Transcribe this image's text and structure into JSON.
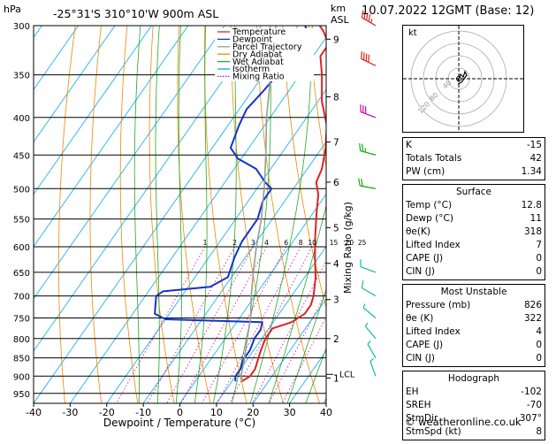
{
  "header": {
    "location": "-25°31'S  310°10'W  900m  ASL",
    "datetime": "10.07.2022  12GMT  (Base: 12)",
    "hpa_label": "hPa",
    "km_label": "km",
    "asl_label": "ASL"
  },
  "chart_data": {
    "type": "line",
    "xlabel": "Dewpoint / Temperature (°C)",
    "ylabel_right": "Mixing Ratio (g/kg)",
    "ylabel_left": "hPa",
    "xlim": [
      -40,
      40
    ],
    "ylim": [
      980,
      300
    ],
    "y_log_scale": true,
    "x_ticks": [
      -40,
      -30,
      -20,
      -10,
      0,
      10,
      20,
      30,
      40
    ],
    "pressure_ticks": [
      300,
      350,
      400,
      450,
      500,
      550,
      600,
      650,
      700,
      750,
      800,
      850,
      900,
      950
    ],
    "km_ticks": [
      {
        "label": "9",
        "p": 313
      },
      {
        "label": "8",
        "p": 375
      },
      {
        "label": "7",
        "p": 432
      },
      {
        "label": "6",
        "p": 490
      },
      {
        "label": "5",
        "p": 565
      },
      {
        "label": "4",
        "p": 632
      },
      {
        "label": "3",
        "p": 708
      },
      {
        "label": "2",
        "p": 800
      },
      {
        "label": "1",
        "p": 905
      }
    ],
    "lcl": {
      "label": "LCL",
      "p": 895
    },
    "mixing_ratios": [
      {
        "label": "1",
        "w": 1
      },
      {
        "label": "2",
        "w": 2
      },
      {
        "label": "3",
        "w": 3
      },
      {
        "label": "4",
        "w": 4
      },
      {
        "label": "6",
        "w": 6
      },
      {
        "label": "8",
        "w": 8
      },
      {
        "label": "10",
        "w": 10
      },
      {
        "label": "15",
        "w": 15
      },
      {
        "label": "20",
        "w": 20
      },
      {
        "label": "25",
        "w": 25
      }
    ],
    "legend": [
      {
        "name": "Temperature",
        "color": "#dd2222",
        "style": "solid"
      },
      {
        "name": "Dewpoint",
        "color": "#1133cc",
        "style": "solid"
      },
      {
        "name": "Parcel Trajectory",
        "color": "#999999",
        "style": "solid"
      },
      {
        "name": "Dry Adiabat",
        "color": "#ee8800",
        "style": "solid"
      },
      {
        "name": "Wet Adiabat",
        "color": "#22aa22",
        "style": "solid"
      },
      {
        "name": "Isotherm",
        "color": "#00aaee",
        "style": "solid"
      },
      {
        "name": "Mixing Ratio",
        "color": "#cc00aa",
        "style": "dotted"
      }
    ],
    "series": [
      {
        "name": "Temperature",
        "color": "#dd2222",
        "points": [
          [
            12.8,
            915
          ],
          [
            14,
            900
          ],
          [
            14,
            880
          ],
          [
            12,
            830
          ],
          [
            11,
            800
          ],
          [
            11,
            775
          ],
          [
            15,
            760
          ],
          [
            17,
            740
          ],
          [
            17,
            720
          ],
          [
            16,
            700
          ],
          [
            13,
            660
          ],
          [
            9,
            620
          ],
          [
            5,
            580
          ],
          [
            1,
            540
          ],
          [
            -2,
            510
          ],
          [
            -5,
            490
          ],
          [
            -6,
            470
          ],
          [
            -9,
            440
          ],
          [
            -13,
            410
          ],
          [
            -19,
            380
          ],
          [
            -24,
            350
          ],
          [
            -28,
            330
          ],
          [
            -28,
            318
          ],
          [
            -32,
            305
          ],
          [
            -34,
            300
          ]
        ]
      },
      {
        "name": "Dewpoint",
        "color": "#1133cc",
        "points": [
          [
            11,
            915
          ],
          [
            10,
            900
          ],
          [
            10,
            880
          ],
          [
            9,
            855
          ],
          [
            9,
            830
          ],
          [
            8,
            800
          ],
          [
            8,
            778
          ],
          [
            7,
            760
          ],
          [
            -20,
            753
          ],
          [
            -24,
            740
          ],
          [
            -27,
            700
          ],
          [
            -26,
            690
          ],
          [
            -14,
            680
          ],
          [
            -11,
            660
          ],
          [
            -13,
            620
          ],
          [
            -14,
            590
          ],
          [
            -14,
            550
          ],
          [
            -16,
            520
          ],
          [
            -16,
            500
          ],
          [
            -19,
            490
          ],
          [
            -24,
            470
          ],
          [
            -31,
            455
          ],
          [
            -35,
            440
          ],
          [
            -37,
            410
          ],
          [
            -38,
            390
          ],
          [
            -37,
            370
          ],
          [
            -36,
            345
          ],
          [
            -34,
            323
          ],
          [
            -34,
            317
          ],
          [
            -35,
            310
          ],
          [
            -38,
            300
          ]
        ]
      },
      {
        "name": "Parcel Trajectory",
        "color": "#999999",
        "points": [
          [
            12.8,
            915
          ],
          [
            11.5,
            900
          ],
          [
            9,
            850
          ],
          [
            6,
            800
          ],
          [
            3,
            750
          ],
          [
            -1,
            700
          ],
          [
            -5,
            650
          ],
          [
            -9,
            600
          ],
          [
            -13,
            550
          ],
          [
            -18,
            500
          ],
          [
            -24,
            450
          ],
          [
            -31,
            400
          ],
          [
            -38,
            350
          ],
          [
            -46,
            300
          ]
        ]
      }
    ],
    "wind_barbs": [
      {
        "p": 300,
        "speed": 45,
        "dir": 300
      },
      {
        "p": 340,
        "speed": 40,
        "dir": 295
      },
      {
        "p": 400,
        "speed": 30,
        "dir": 290
      },
      {
        "p": 450,
        "speed": 25,
        "dir": 285
      },
      {
        "p": 500,
        "speed": 20,
        "dir": 280
      },
      {
        "p": 650,
        "speed": 10,
        "dir": 290
      },
      {
        "p": 700,
        "speed": 10,
        "dir": 300
      },
      {
        "p": 750,
        "speed": 5,
        "dir": 310
      },
      {
        "p": 800,
        "speed": 5,
        "dir": 320
      },
      {
        "p": 850,
        "speed": 5,
        "dir": 330
      },
      {
        "p": 900,
        "speed": 5,
        "dir": 340
      }
    ]
  },
  "hodograph": {
    "label": "kt",
    "ring_labels": [
      "40",
      "80",
      "120"
    ]
  },
  "indices": {
    "rows": [
      {
        "label": "K",
        "value": "-15"
      },
      {
        "label": "Totals Totals",
        "value": "42"
      },
      {
        "label": "PW (cm)",
        "value": "1.34"
      }
    ]
  },
  "surface": {
    "title": "Surface",
    "rows": [
      {
        "label": "Temp (°C)",
        "value": "12.8"
      },
      {
        "label": "Dewp (°C)",
        "value": "11"
      },
      {
        "label": "θe(K)",
        "value": "318"
      },
      {
        "label": "Lifted Index",
        "value": "7"
      },
      {
        "label": "CAPE (J)",
        "value": "0"
      },
      {
        "label": "CIN (J)",
        "value": "0"
      }
    ]
  },
  "most_unstable": {
    "title": "Most Unstable",
    "rows": [
      {
        "label": "Pressure (mb)",
        "value": "826"
      },
      {
        "label": "θe (K)",
        "value": "322"
      },
      {
        "label": "Lifted Index",
        "value": "4"
      },
      {
        "label": "CAPE (J)",
        "value": "0"
      },
      {
        "label": "CIN (J)",
        "value": "0"
      }
    ]
  },
  "hodograph_stats": {
    "title": "Hodograph",
    "rows": [
      {
        "label": "EH",
        "value": "-102"
      },
      {
        "label": "SREH",
        "value": "-70"
      },
      {
        "label": "StmDir",
        "value": "307°"
      },
      {
        "label": "StmSpd (kt)",
        "value": "8"
      }
    ]
  },
  "credit": "© weatheronline.co.uk"
}
